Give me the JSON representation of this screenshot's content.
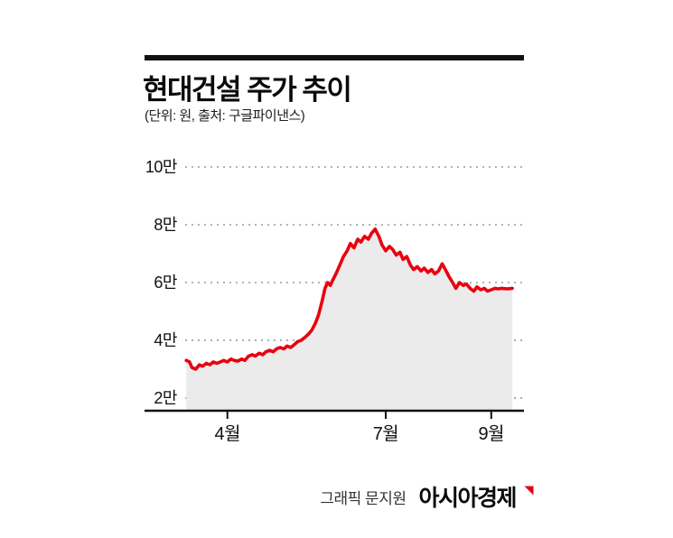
{
  "header": {
    "title": "현대건설 주가 추이",
    "subtitle": "(단위: 원, 출처: 구글파이낸스)"
  },
  "chart_data": {
    "type": "area",
    "title": "현대건설 주가 추이",
    "note": "(단위: 원, 출처: 구글파이낸스)",
    "series_name": "현대건설 주가",
    "x_unit": "month",
    "y_unit": "원",
    "xlim": [
      3.2,
      9.62
    ],
    "ylim": [
      15600,
      100000
    ],
    "grid": "dotted-horizontal",
    "legend": "none",
    "x": [
      3.22,
      3.28,
      3.33,
      3.4,
      3.47,
      3.53,
      3.6,
      3.67,
      3.73,
      3.8,
      3.87,
      3.93,
      4.0,
      4.07,
      4.13,
      4.2,
      4.27,
      4.33,
      4.4,
      4.47,
      4.53,
      4.6,
      4.67,
      4.73,
      4.8,
      4.87,
      4.93,
      5.0,
      5.07,
      5.13,
      5.2,
      5.27,
      5.33,
      5.4,
      5.47,
      5.53,
      5.6,
      5.67,
      5.73,
      5.8,
      5.85,
      5.9,
      5.95,
      6.0,
      6.07,
      6.13,
      6.2,
      6.27,
      6.33,
      6.4,
      6.47,
      6.53,
      6.6,
      6.67,
      6.73,
      6.8,
      6.87,
      6.93,
      7.0,
      7.07,
      7.13,
      7.2,
      7.27,
      7.33,
      7.4,
      7.47,
      7.53,
      7.6,
      7.67,
      7.73,
      7.8,
      7.87,
      7.93,
      8.0,
      8.07,
      8.13,
      8.2,
      8.27,
      8.33,
      8.4,
      8.47,
      8.53,
      8.6,
      8.67,
      8.73,
      8.8,
      8.87,
      8.93,
      9.0,
      9.07,
      9.13,
      9.2,
      9.3,
      9.4
    ],
    "values": [
      33000,
      32500,
      30500,
      30000,
      31500,
      31000,
      32000,
      31500,
      32500,
      32000,
      32500,
      33000,
      32500,
      33500,
      33000,
      32800,
      33500,
      33000,
      34500,
      35000,
      34500,
      35500,
      35000,
      36000,
      36500,
      36000,
      37000,
      37500,
      37000,
      38000,
      37500,
      38500,
      39500,
      40000,
      41000,
      42000,
      43500,
      46000,
      49000,
      54000,
      58000,
      60000,
      59000,
      61000,
      63500,
      66000,
      69000,
      71000,
      73500,
      72000,
      75000,
      74000,
      76000,
      75000,
      77000,
      78500,
      76000,
      73000,
      71000,
      72500,
      71500,
      69500,
      70500,
      68000,
      69000,
      66000,
      64500,
      65500,
      64000,
      65000,
      63500,
      64500,
      63000,
      64000,
      66500,
      64500,
      62000,
      60000,
      58000,
      60000,
      59000,
      59500,
      58000,
      57000,
      58500,
      57500,
      58000,
      57000,
      57500,
      58000,
      57800,
      58000,
      57800,
      58000
    ],
    "y_ticks": [
      {
        "value": 100000,
        "label": "10만"
      },
      {
        "value": 80000,
        "label": "8만"
      },
      {
        "value": 60000,
        "label": "6만"
      },
      {
        "value": 40000,
        "label": "4만"
      },
      {
        "value": 20000,
        "label": "2만"
      }
    ],
    "x_ticks": [
      {
        "month": 4,
        "label": "4월"
      },
      {
        "month": 7,
        "label": "7월"
      },
      {
        "month": 9,
        "label": "9월"
      }
    ],
    "colors": {
      "line": "#e8000f",
      "fill": "#ebebeb",
      "grid": "#9a9a9a",
      "axis": "#111111"
    }
  },
  "footer": {
    "credit": "그래픽 문지원",
    "publisher": "아시아경제"
  }
}
